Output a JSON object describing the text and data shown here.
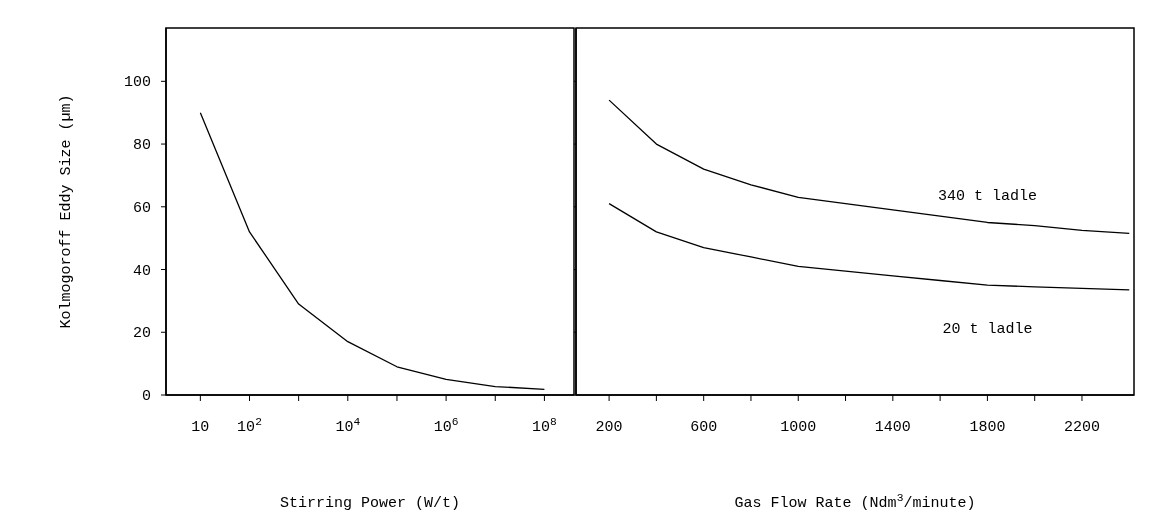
{
  "chart_data": [
    {
      "type": "line",
      "ylabel": "Kolmogoroff Eddy Size (µm)",
      "xlabel": "Stirring Power (W/t)",
      "log": "x",
      "x": [
        10,
        100,
        1000,
        10000,
        100000,
        1000000,
        10000000,
        100000000
      ],
      "series": [
        {
          "color": "#000000",
          "values": [
            90,
            52,
            29,
            17,
            9,
            5,
            2.7,
            1.8
          ]
        }
      ],
      "xlim": [
        2,
        400000000
      ],
      "xticks": [
        {
          "value": 10,
          "label": "10"
        },
        {
          "value": 100,
          "label": "10$^{2}$"
        },
        {
          "value": 1000,
          "label": null
        },
        {
          "value": 10000,
          "label": "10$^{4}$"
        },
        {
          "value": 100000,
          "label": null
        },
        {
          "value": 1000000,
          "label": "10$^{6}$"
        },
        {
          "value": 10000000,
          "label": null
        },
        {
          "value": 100000000,
          "label": "10$^{8}$"
        }
      ],
      "ylim": [
        0,
        117
      ],
      "yticks": [
        0,
        20,
        40,
        60,
        80,
        100
      ],
      "grid": false,
      "legend": false,
      "marker": "none",
      "line_style": "solid"
    },
    {
      "type": "line",
      "xlabel": "Gas Flow Rate (Ndm$^{3}$/minute)",
      "tick_labels": "x",
      "x": [
        200,
        400,
        600,
        800,
        1000,
        1200,
        1400,
        1600,
        1800,
        2000,
        2200,
        2400
      ],
      "series": [
        {
          "name": "340 t ladle",
          "color": "#000000",
          "values": [
            94,
            80,
            72,
            67,
            63,
            61,
            59,
            57,
            55,
            54,
            52.5,
            51.5
          ]
        },
        {
          "name": "20 t ladle",
          "color": "#000000",
          "values": [
            61,
            52,
            47,
            44,
            41,
            39.5,
            38,
            36.5,
            35,
            34.5,
            34,
            33.5
          ]
        }
      ],
      "xlim": [
        60,
        2420
      ],
      "xticks": [
        200,
        {
          "value": 400,
          "label": null
        },
        600,
        {
          "value": 800,
          "label": null
        },
        1000,
        {
          "value": 1200,
          "label": null
        },
        1400,
        {
          "value": 1600,
          "label": null
        },
        1800,
        {
          "value": 2000,
          "label": null
        },
        2200
      ],
      "ylim": [
        0,
        117
      ],
      "yticks": [
        0,
        20,
        40,
        60,
        80,
        100
      ],
      "grid": false,
      "legend": false,
      "marker": "none",
      "line_style": "solid"
    }
  ]
}
